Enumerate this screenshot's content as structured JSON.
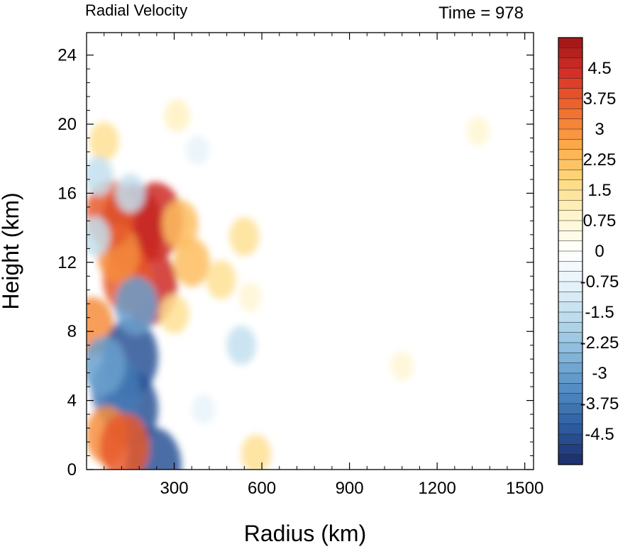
{
  "chart_data": {
    "type": "heatmap",
    "title": "Radial Velocity",
    "subtitle": "Time = 978",
    "xlabel": "Radius (km)",
    "ylabel": "Height (km)",
    "xlim": [
      0,
      1530
    ],
    "ylim": [
      0,
      25.3
    ],
    "x_ticks": [
      300,
      600,
      900,
      1200,
      1500
    ],
    "y_ticks": [
      0,
      4,
      8,
      12,
      16,
      20,
      24
    ],
    "colorbar": {
      "min": -5.25,
      "max": 5.25,
      "step": 0.25,
      "tick_labels": [
        "4.5",
        "3.75",
        "3",
        "2.25",
        "1.5",
        "0.75",
        "0",
        "-0.75",
        "-1.5",
        "-2.25",
        "-3",
        "-3.75",
        "-4.5"
      ],
      "colors": [
        "#1a2c6b",
        "#2c5a9e",
        "#4d87c0",
        "#7fb3d8",
        "#b6d8ec",
        "#e4f1f8",
        "#ffffff",
        "#fff5cc",
        "#fed97d",
        "#fca848",
        "#ef6a2e",
        "#d62f27",
        "#9e1518"
      ]
    },
    "features": [
      {
        "r": 155,
        "z": 14.0,
        "v": 5.25
      },
      {
        "r": 235,
        "z": 14.4,
        "v": 4.5
      },
      {
        "r": 215,
        "z": 10.6,
        "v": 4.5
      },
      {
        "r": 140,
        "z": 11.0,
        "v": 3.75
      },
      {
        "r": 110,
        "z": 12.5,
        "v": 3.0
      },
      {
        "r": 80,
        "z": 14.8,
        "v": 3.75
      },
      {
        "r": 20,
        "z": 8.3,
        "v": 3.0
      },
      {
        "r": 60,
        "z": 19.0,
        "v": 1.5
      },
      {
        "r": 320,
        "z": 14.2,
        "v": 2.25
      },
      {
        "r": 360,
        "z": 12.0,
        "v": 2.25
      },
      {
        "r": 300,
        "z": 9.0,
        "v": 1.5
      },
      {
        "r": 460,
        "z": 11.0,
        "v": 1.5
      },
      {
        "r": 540,
        "z": 13.5,
        "v": 1.5
      },
      {
        "r": 560,
        "z": 10.0,
        "v": 0.75
      },
      {
        "r": 310,
        "z": 20.5,
        "v": 1.0
      },
      {
        "r": 150,
        "z": 6.5,
        "v": -4.5
      },
      {
        "r": 150,
        "z": 3.5,
        "v": -4.5
      },
      {
        "r": 100,
        "z": 4.6,
        "v": -3.75
      },
      {
        "r": 60,
        "z": 6.0,
        "v": -3.0
      },
      {
        "r": 170,
        "z": 9.5,
        "v": -3.0
      },
      {
        "r": 30,
        "z": 13.5,
        "v": -1.5
      },
      {
        "r": 40,
        "z": 17.0,
        "v": -1.5
      },
      {
        "r": 150,
        "z": 16.0,
        "v": -1.5
      },
      {
        "r": 380,
        "z": 18.5,
        "v": -0.75
      },
      {
        "r": 530,
        "z": 7.2,
        "v": -1.5
      },
      {
        "r": 400,
        "z": 3.5,
        "v": -0.75
      },
      {
        "r": 230,
        "z": 0.2,
        "v": -4.5
      },
      {
        "r": 70,
        "z": 2.0,
        "v": 3.0
      },
      {
        "r": 130,
        "z": 1.3,
        "v": 3.75
      },
      {
        "r": 580,
        "z": 0.9,
        "v": 1.5
      },
      {
        "r": 1080,
        "z": 6.0,
        "v": 0.75
      },
      {
        "r": 1340,
        "z": 19.6,
        "v": 0.75
      }
    ]
  }
}
